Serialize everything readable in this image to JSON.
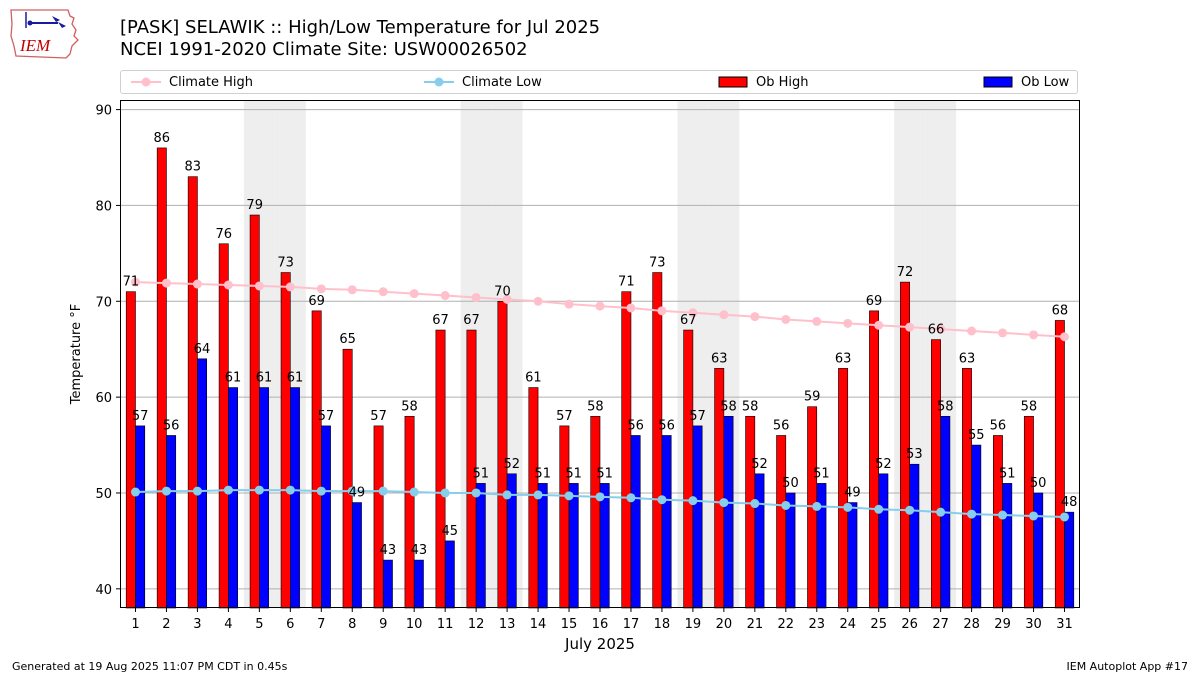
{
  "header": {
    "logo_text": "IEM",
    "title_line1": "[PASK] SELAWIK :: High/Low Temperature for Jul 2025",
    "title_line2": "NCEI 1991-2020 Climate Site: USW00026502"
  },
  "colors": {
    "ob_high": "#ff0000",
    "ob_low": "#0000ff",
    "climate_high": "#ffc0cb",
    "climate_low": "#87ceeb",
    "weekend_band": "#eeeeee",
    "grid": "#b0b0b0"
  },
  "legend": {
    "climate_high": "Climate High",
    "climate_low": "Climate Low",
    "ob_high": "Ob High",
    "ob_low": "Ob Low"
  },
  "chart_data": {
    "type": "bar",
    "title": "[PASK] SELAWIK :: High/Low Temperature for Jul 2025",
    "xlabel": "July 2025",
    "ylabel": "Temperature °F",
    "ylim": [
      38,
      91
    ],
    "yticks": [
      40,
      50,
      60,
      70,
      80,
      90
    ],
    "grid": true,
    "legend_position": "top",
    "categories": [
      "1",
      "2",
      "3",
      "4",
      "5",
      "6",
      "7",
      "8",
      "9",
      "10",
      "11",
      "12",
      "13",
      "14",
      "15",
      "16",
      "17",
      "18",
      "19",
      "20",
      "21",
      "22",
      "23",
      "24",
      "25",
      "26",
      "27",
      "28",
      "29",
      "30",
      "31"
    ],
    "weekend_days": [
      5,
      6,
      12,
      13,
      19,
      20,
      26,
      27
    ],
    "series": [
      {
        "name": "Ob High",
        "kind": "bar",
        "values": [
          71,
          86,
          83,
          76,
          79,
          73,
          69,
          65,
          57,
          58,
          67,
          67,
          70,
          61,
          57,
          58,
          71,
          73,
          67,
          63,
          58,
          56,
          59,
          63,
          69,
          72,
          66,
          63,
          56,
          58,
          68
        ]
      },
      {
        "name": "Ob Low",
        "kind": "bar",
        "values": [
          57,
          56,
          64,
          61,
          61,
          61,
          57,
          49,
          43,
          43,
          45,
          51,
          52,
          51,
          51,
          51,
          56,
          56,
          57,
          58,
          52,
          50,
          51,
          49,
          52,
          53,
          58,
          55,
          51,
          50,
          48
        ]
      },
      {
        "name": "Climate High",
        "kind": "line",
        "values": [
          72.0,
          71.9,
          71.8,
          71.7,
          71.6,
          71.5,
          71.3,
          71.2,
          71.0,
          70.8,
          70.6,
          70.4,
          70.2,
          70.0,
          69.7,
          69.5,
          69.3,
          69.0,
          68.8,
          68.6,
          68.4,
          68.1,
          67.9,
          67.7,
          67.5,
          67.3,
          67.1,
          66.9,
          66.7,
          66.5,
          66.3
        ]
      },
      {
        "name": "Climate Low",
        "kind": "line",
        "values": [
          50.1,
          50.2,
          50.2,
          50.3,
          50.3,
          50.3,
          50.2,
          50.2,
          50.2,
          50.1,
          50.0,
          50.0,
          49.8,
          49.8,
          49.7,
          49.6,
          49.5,
          49.3,
          49.2,
          49.0,
          48.9,
          48.7,
          48.6,
          48.5,
          48.3,
          48.2,
          48.0,
          47.8,
          47.7,
          47.6,
          47.5
        ]
      }
    ]
  },
  "footer": {
    "generated": "Generated at 19 Aug 2025 11:07 PM CDT in 0.45s",
    "app": "IEM Autoplot App #17"
  }
}
